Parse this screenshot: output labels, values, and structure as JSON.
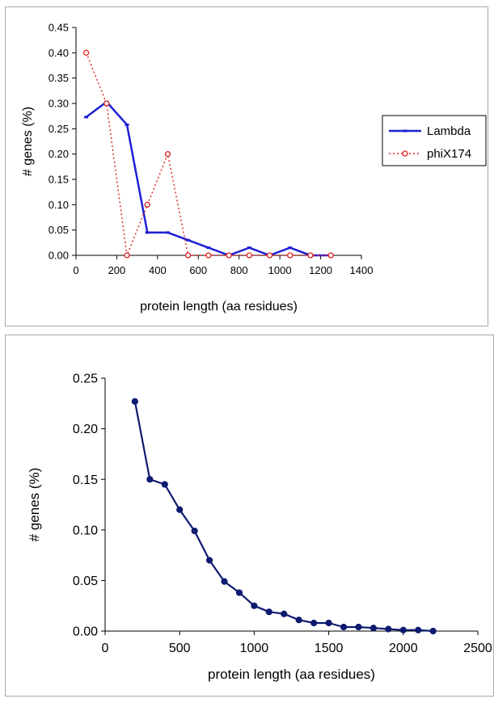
{
  "chart_data": [
    {
      "type": "line",
      "title": "",
      "xlabel": "protein length (aa residues)",
      "ylabel": "# genes (%)",
      "xlim": [
        0,
        1400
      ],
      "ylim": [
        0,
        0.45
      ],
      "xticks": [
        "0",
        "200",
        "400",
        "600",
        "800",
        "1000",
        "1200",
        "1400"
      ],
      "yticks": [
        "0.00",
        "0.05",
        "0.10",
        "0.15",
        "0.20",
        "0.25",
        "0.30",
        "0.35",
        "0.40",
        "0.45"
      ],
      "grid": false,
      "legend": "right",
      "series": [
        {
          "name": "Lambda",
          "color": "#1f1fd6",
          "style": "solid",
          "x": [
            50,
            150,
            250,
            350,
            450,
            550,
            650,
            750,
            850,
            950,
            1050,
            1150,
            1250
          ],
          "y": [
            0.273,
            0.303,
            0.258,
            0.045,
            0.045,
            0.03,
            0.015,
            0.0,
            0.015,
            0.0,
            0.015,
            0.0,
            0.0
          ]
        },
        {
          "name": "phiX174",
          "color": "#e02020",
          "style": "dotted",
          "x": [
            50,
            150,
            250,
            350,
            450,
            550,
            650,
            750,
            850,
            950,
            1050,
            1150,
            1250
          ],
          "y": [
            0.4,
            0.3,
            0.0,
            0.1,
            0.2,
            0.0,
            0.0,
            0.0,
            0.0,
            0.0,
            0.0,
            0.0,
            0.0
          ]
        }
      ]
    },
    {
      "type": "line",
      "title": "",
      "xlabel": "protein length (aa residues)",
      "ylabel": "# genes (%)",
      "xlim": [
        0,
        2500
      ],
      "ylim": [
        0,
        0.25
      ],
      "xticks": [
        "0",
        "500",
        "1000",
        "1500",
        "2000",
        "2500"
      ],
      "yticks": [
        "0.00",
        "0.05",
        "0.10",
        "0.15",
        "0.20",
        "0.25"
      ],
      "grid": false,
      "legend": "none",
      "series": [
        {
          "color": "#0d1a70",
          "style": "solid",
          "x": [
            200,
            300,
            400,
            500,
            600,
            700,
            800,
            900,
            1000,
            1100,
            1200,
            1300,
            1400,
            1500,
            1600,
            1700,
            1800,
            1900,
            2000,
            2100,
            2200
          ],
          "y": [
            0.227,
            0.15,
            0.145,
            0.12,
            0.099,
            0.07,
            0.049,
            0.038,
            0.025,
            0.019,
            0.017,
            0.011,
            0.008,
            0.008,
            0.004,
            0.004,
            0.003,
            0.002,
            0.001,
            0.001,
            0.0
          ]
        }
      ]
    }
  ]
}
